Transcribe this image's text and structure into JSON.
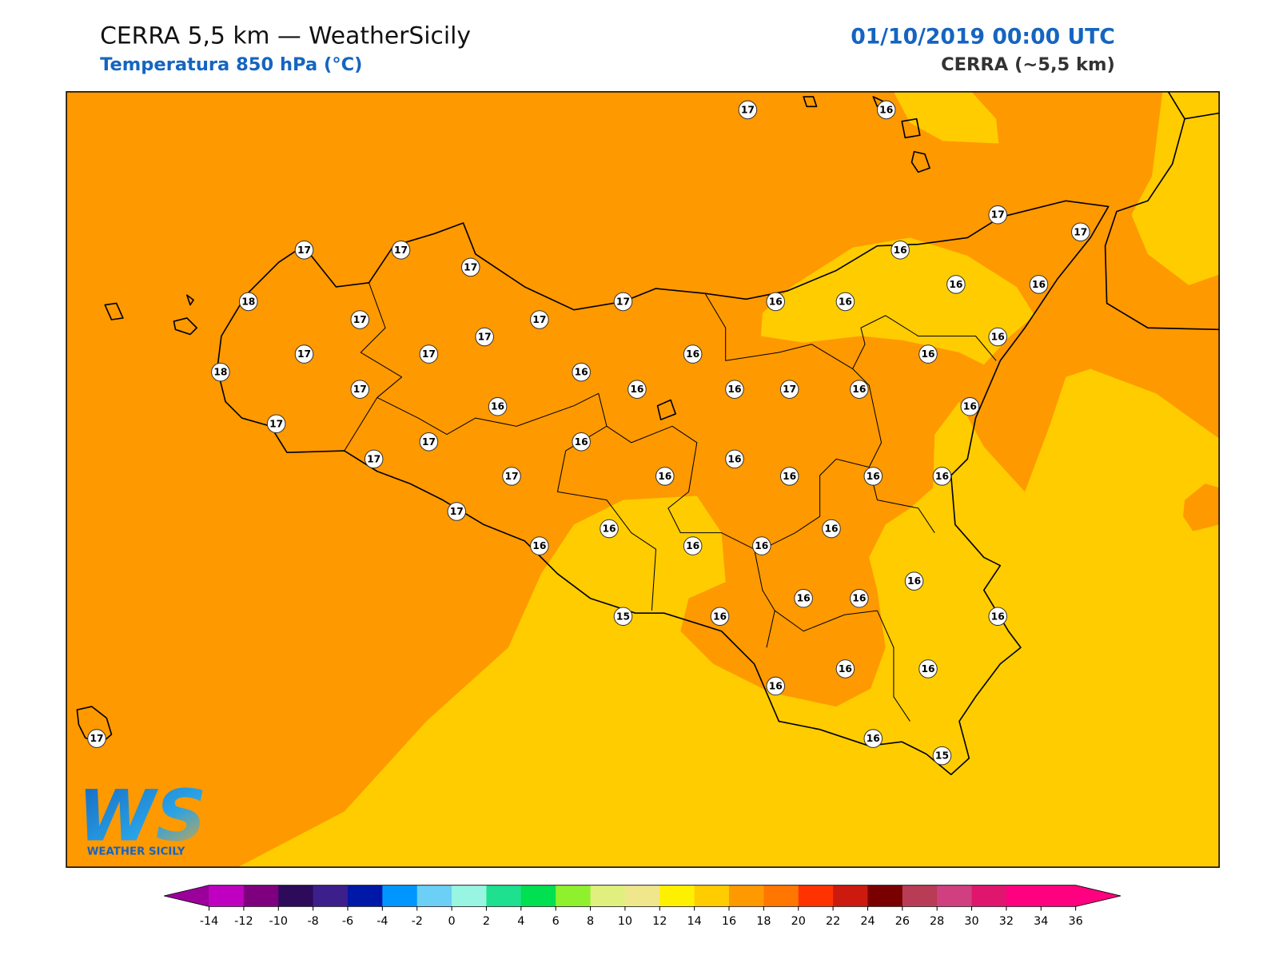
{
  "header": {
    "title": "CERRA 5,5 km — WeatherSicily",
    "subtitle": "Temperatura 850 hPa (°C)",
    "datetime": "01/10/2019 00:00 UTC",
    "model": "CERRA (~5,5 km)"
  },
  "stations": [
    17,
    16,
    17,
    17,
    17,
    17,
    17,
    16,
    18,
    16,
    16,
    17,
    17,
    16,
    16,
    17,
    17,
    16,
    17,
    17,
    16,
    16,
    18,
    16,
    17,
    16,
    16,
    17,
    16,
    16,
    16,
    17,
    17,
    16,
    17,
    16,
    17,
    16,
    16,
    16,
    16,
    17,
    16,
    16,
    16,
    16,
    16,
    16,
    16,
    16,
    15,
    16,
    16,
    16,
    16,
    16,
    17,
    16,
    15
  ],
  "colorbar": {
    "ticks": [
      -14,
      -12,
      -10,
      -8,
      -6,
      -4,
      -2,
      0,
      2,
      4,
      6,
      8,
      10,
      12,
      14,
      16,
      18,
      20,
      22,
      24,
      26,
      28,
      30,
      32,
      34,
      36
    ],
    "colors": [
      "#c000c0",
      "#7f007f",
      "#2e0a5a",
      "#3c1f8a",
      "#0018a8",
      "#0096ff",
      "#6ccff6",
      "#98f5e1",
      "#1ee08f",
      "#00e050",
      "#8ff02e",
      "#dff07f",
      "#f0e68c",
      "#fff000",
      "#ffcc00",
      "#ff9900",
      "#ff7700",
      "#ff3300",
      "#cc1a0e",
      "#7a0000",
      "#b83c55",
      "#d04080",
      "#e0156e",
      "#ff0080",
      "#ff007f"
    ],
    "under_color": "#9b009b",
    "over_color": "#ff0080"
  },
  "logo": {
    "initials": "WS",
    "name": "WEATHER SICILY"
  }
}
